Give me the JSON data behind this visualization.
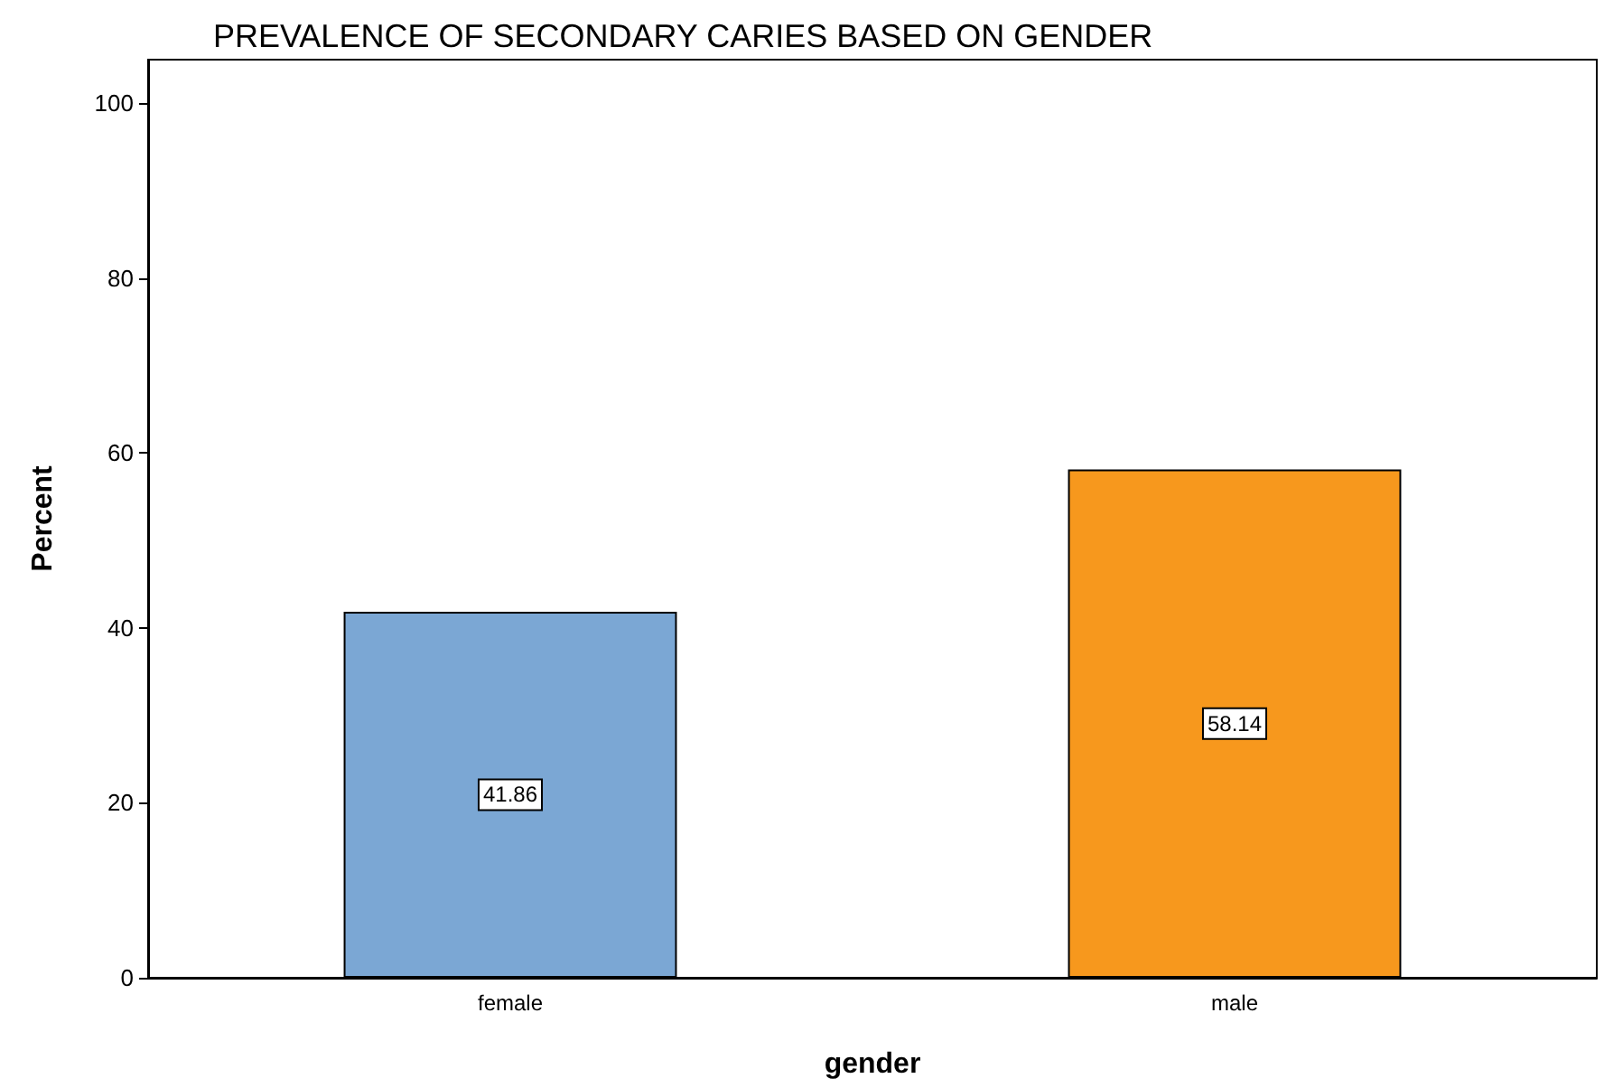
{
  "chart_data": {
    "type": "bar",
    "title": "PREVALENCE OF SECONDARY CARIES BASED ON GENDER",
    "xlabel": "gender",
    "ylabel": "Percent",
    "categories": [
      "female",
      "male"
    ],
    "values": [
      41.86,
      58.14
    ],
    "colors": [
      "#7ba7d4",
      "#f7981d"
    ],
    "ylim": [
      0,
      105
    ],
    "yticks": [
      0,
      20,
      40,
      60,
      80,
      100
    ],
    "data_labels": true
  }
}
